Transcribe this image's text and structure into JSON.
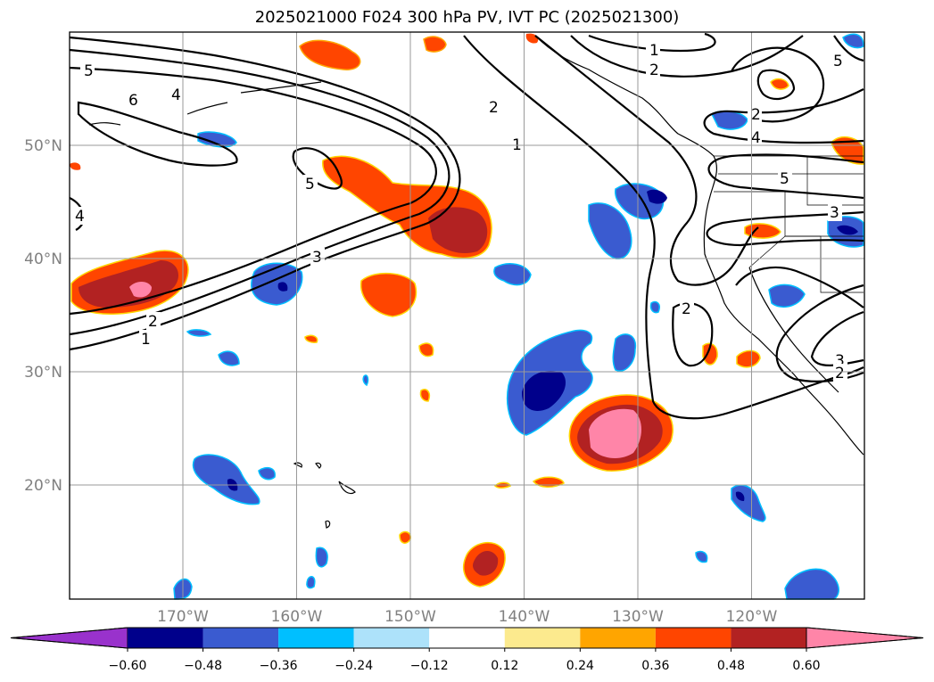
{
  "title": "2025021000 F024 300 hPa PV, IVT PC (2025021300)",
  "axes": {
    "lat_labels": [
      "50°N",
      "40°N",
      "30°N",
      "20°N"
    ],
    "lon_labels": [
      "170°W",
      "160°W",
      "150°W",
      "140°W",
      "130°W",
      "120°W"
    ],
    "lat_values": [
      50,
      40,
      30,
      20
    ],
    "lon_values": [
      -170,
      -160,
      -150,
      -140,
      -130,
      -120
    ],
    "grid": true
  },
  "contour_labels": [
    "1",
    "2",
    "3",
    "4",
    "5",
    "6"
  ],
  "colorbar": {
    "ticks": [
      "−0.60",
      "−0.48",
      "−0.36",
      "−0.24",
      "−0.12",
      "0.12",
      "0.24",
      "0.36",
      "0.48",
      "0.60"
    ],
    "colors": [
      "#9932CC",
      "#00008B",
      "#3A5BD0",
      "#00BFFF",
      "#ADE2FA",
      "#FFFFFF",
      "#FCEA8E",
      "#FFA500",
      "#FF4500",
      "#B22222",
      "#FF85A8"
    ],
    "extend": "both"
  }
}
